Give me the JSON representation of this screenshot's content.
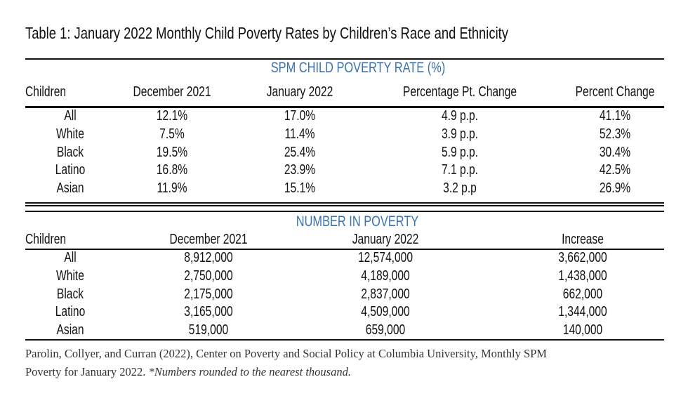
{
  "title": "Table 1: January 2022 Monthly Child Poverty Rates by Children’s Race and Ethnicity",
  "rate_table": {
    "heading": "SPM CHILD POVERTY RATE (%)",
    "columns": [
      "Children",
      "December 2021",
      "January 2022",
      "Percentage Pt. Change",
      "Percent Change"
    ],
    "rows": [
      [
        "All",
        "12.1%",
        "17.0%",
        "4.9 p.p.",
        "41.1%"
      ],
      [
        "White",
        "7.5%",
        "11.4%",
        "3.9 p.p.",
        "52.3%"
      ],
      [
        "Black",
        "19.5%",
        "25.4%",
        "5.9 p.p.",
        "30.4%"
      ],
      [
        "Latino",
        "16.8%",
        "23.9%",
        "7.1 p.p.",
        "42.5%"
      ],
      [
        "Asian",
        "11.9%",
        "15.1%",
        "3.2 p.p",
        "26.9%"
      ]
    ]
  },
  "number_table": {
    "heading": "NUMBER IN POVERTY",
    "columns": [
      "Children",
      "December 2021",
      "January 2022",
      "Increase"
    ],
    "rows": [
      [
        "All",
        "8,912,000",
        "12,574,000",
        "3,662,000"
      ],
      [
        "White",
        "2,750,000",
        "4,189,000",
        "1,438,000"
      ],
      [
        "Black",
        "2,175,000",
        "2,837,000",
        "662,000"
      ],
      [
        "Latino",
        "3,165,000",
        "4,509,000",
        "1,344,000"
      ],
      [
        "Asian",
        "519,000",
        "659,000",
        "140,000"
      ]
    ]
  },
  "footnote": {
    "source": "Parolin, Collyer, and Curran (2022), Center on Poverty and Social Policy at Columbia University, Monthly SPM",
    "source_line2": "Poverty for January 2022.",
    "note": "*Numbers rounded to the nearest thousand."
  },
  "colors": {
    "heading": "#3a72b0"
  }
}
